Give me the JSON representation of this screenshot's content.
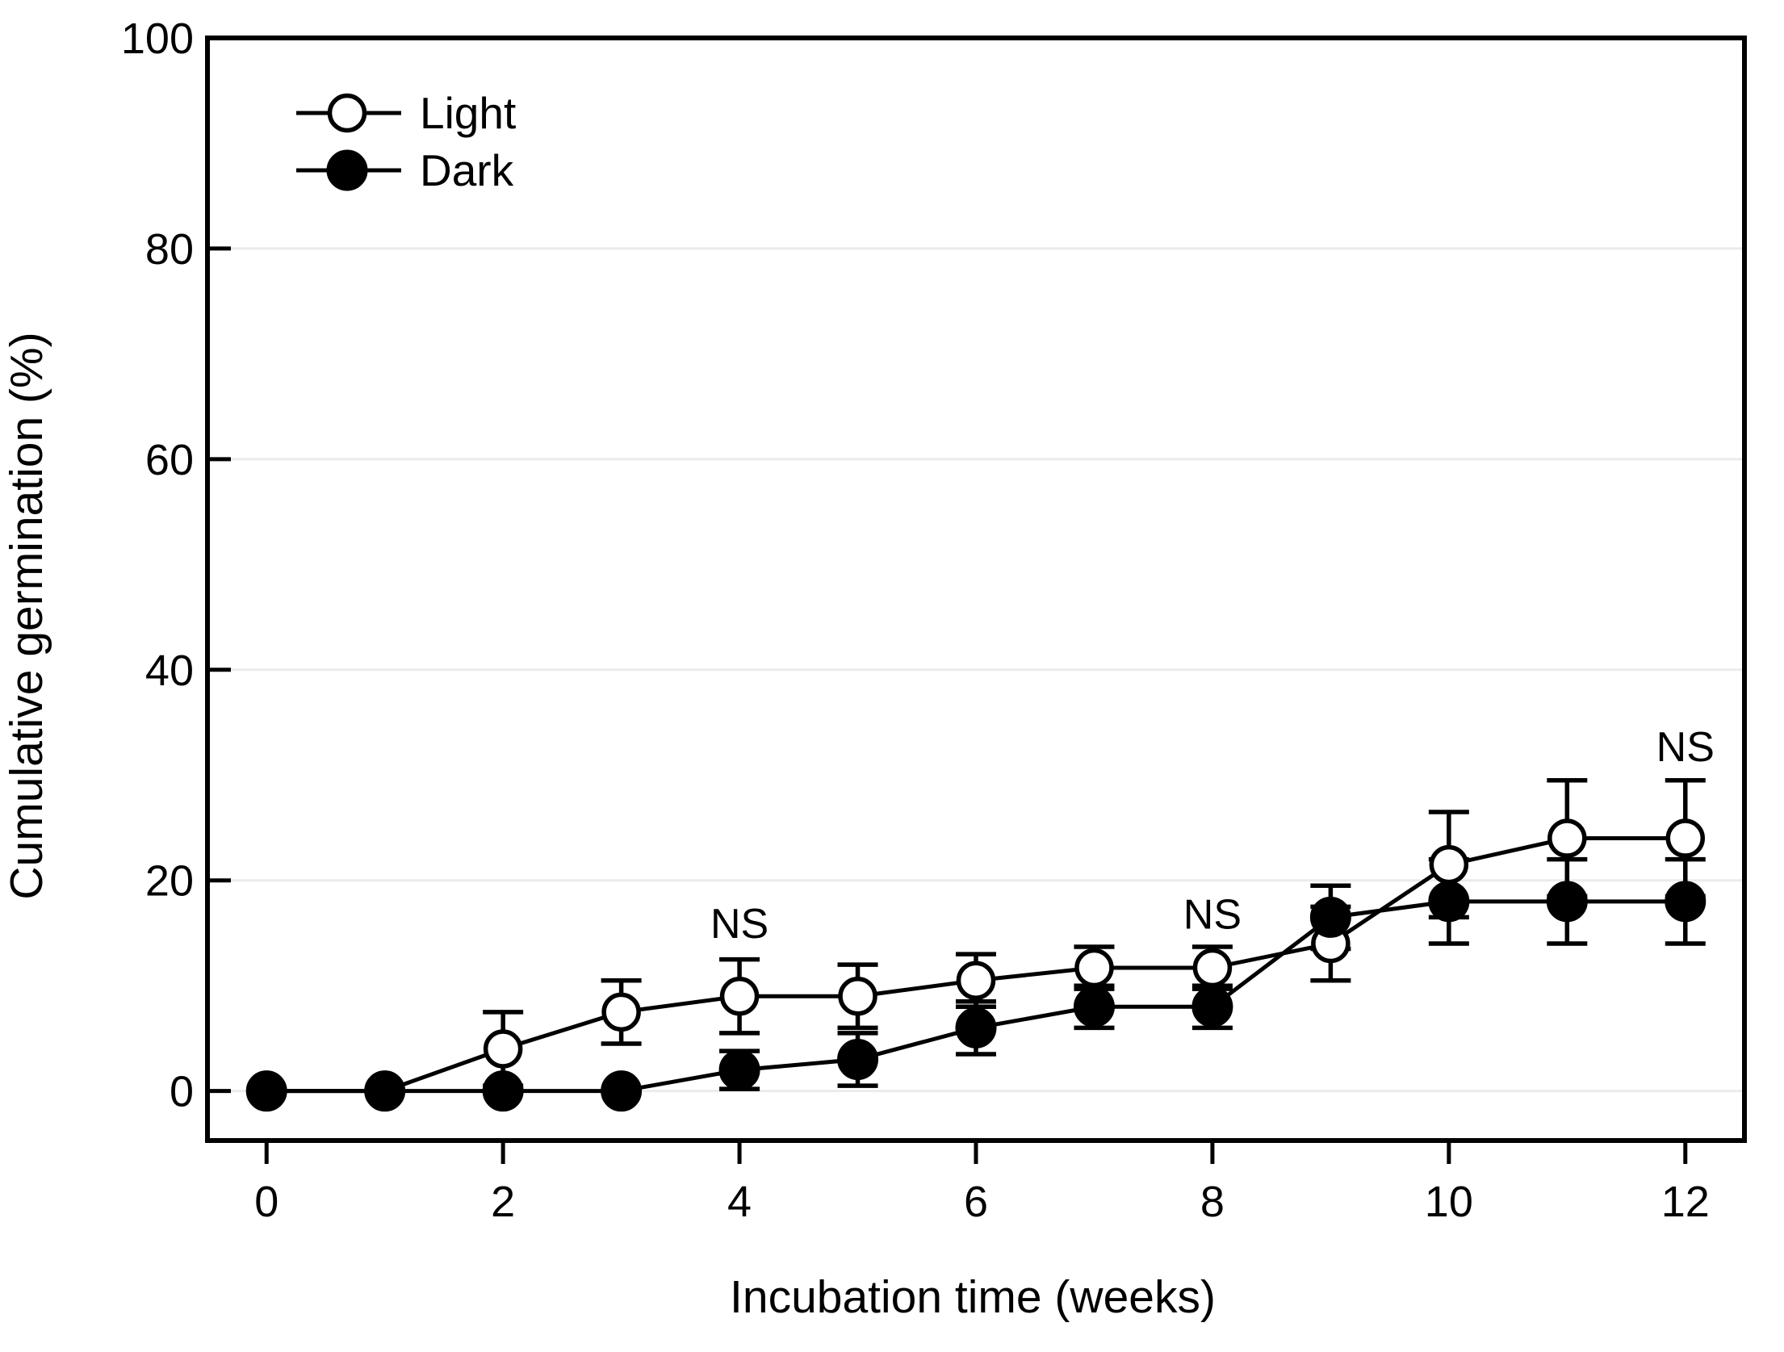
{
  "page": {
    "background": "#ffffff"
  },
  "chart_data": {
    "type": "line",
    "title": "",
    "xlabel": "Incubation time (weeks)",
    "ylabel": "Cumulative germination (%)",
    "x": [
      0,
      1,
      2,
      3,
      4,
      5,
      6,
      7,
      8,
      9,
      10,
      11,
      12
    ],
    "xticks": [
      0,
      2,
      4,
      6,
      8,
      10,
      12
    ],
    "yticks": [
      0,
      20,
      40,
      60,
      80,
      100
    ],
    "xlim": [
      -0.5,
      12.5
    ],
    "ylim": [
      -4.7,
      100
    ],
    "grid": "horizontal",
    "grid_color": "#ebebeb",
    "axis_color": "#000000",
    "text_color": "#000000",
    "legend_position": "top-left-inside",
    "series": [
      {
        "name": "Light",
        "marker": "open-circle",
        "color": "#000000",
        "marker_fill": "#ffffff",
        "values": [
          0,
          0,
          4,
          7.5,
          9,
          9,
          10.5,
          11.7,
          11.7,
          14,
          21.5,
          24,
          24
        ],
        "errors": [
          0,
          0,
          3.5,
          3,
          3.5,
          3,
          2.5,
          2,
          2,
          3.5,
          5,
          5.5,
          5.5
        ]
      },
      {
        "name": "Dark",
        "marker": "filled-circle",
        "color": "#000000",
        "marker_fill": "#000000",
        "values": [
          0,
          0,
          0,
          0,
          2,
          3,
          6,
          8,
          8,
          16.5,
          18,
          18,
          18
        ],
        "errors": [
          0,
          0,
          0,
          0,
          1.8,
          2.5,
          2.5,
          2,
          2,
          3,
          4,
          4,
          4
        ]
      }
    ],
    "annotations": [
      {
        "text": "NS",
        "x": 4,
        "y": 15.9
      },
      {
        "text": "NS",
        "x": 8,
        "y": 16.8
      },
      {
        "text": "NS",
        "x": 12,
        "y": 32.7
      }
    ]
  }
}
